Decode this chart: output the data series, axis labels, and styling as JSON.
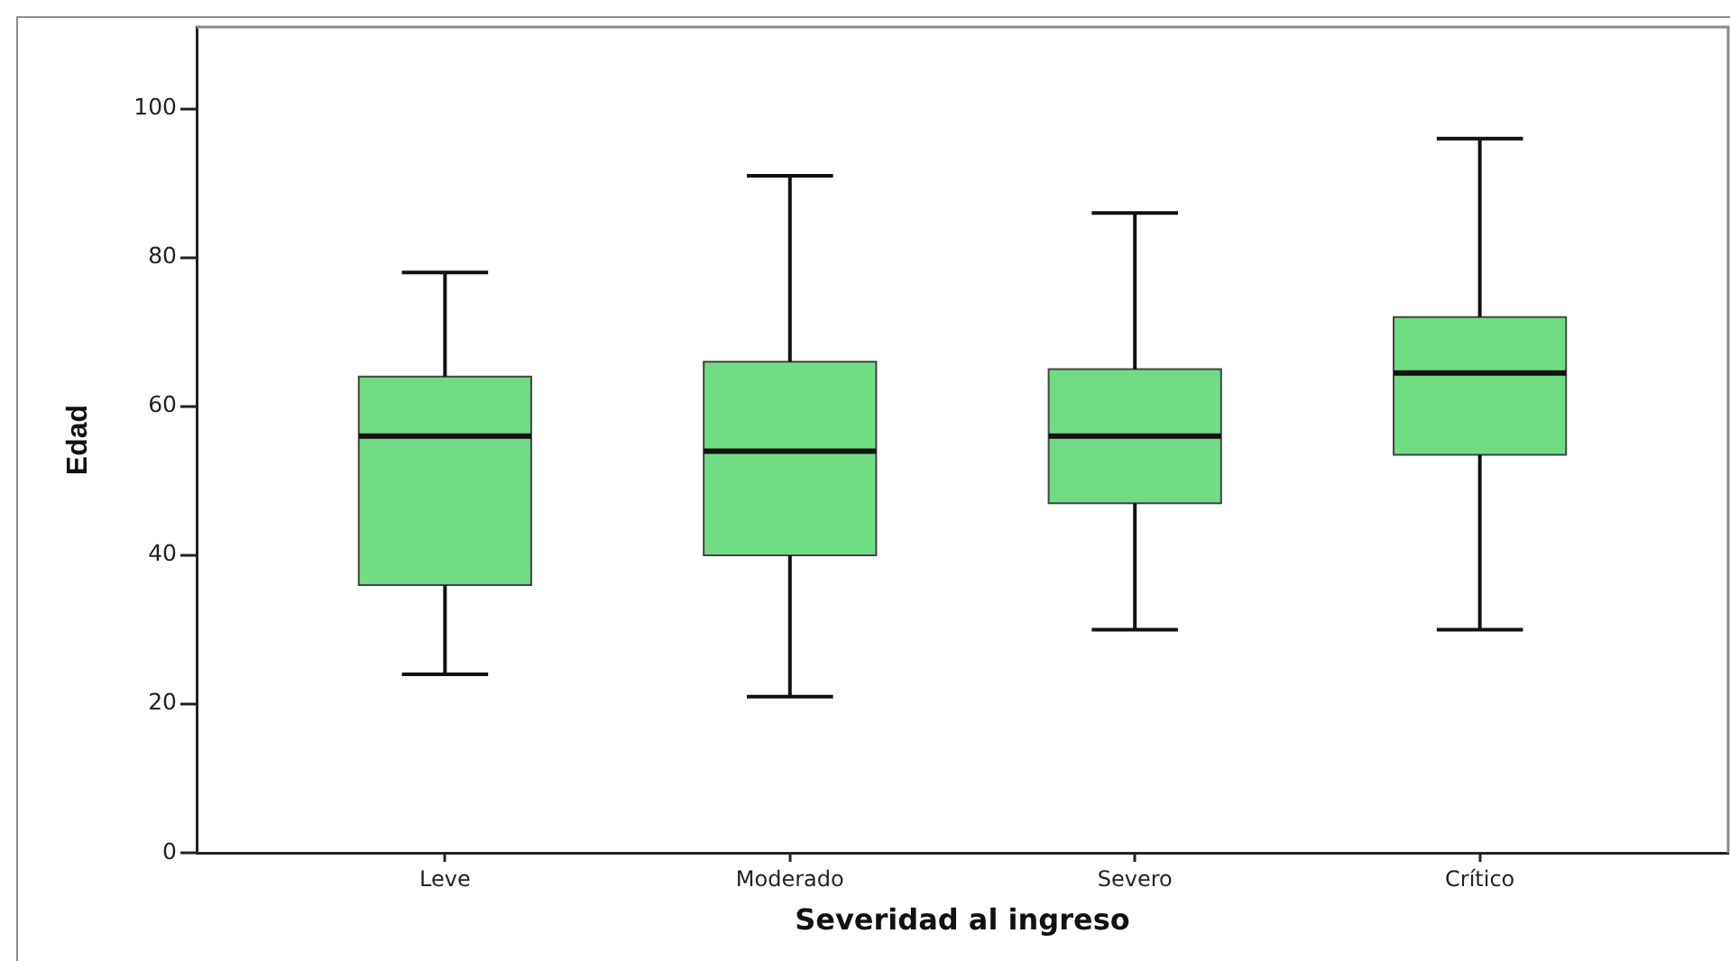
{
  "chart_data": {
    "type": "box",
    "xlabel": "Severidad al ingreso",
    "ylabel": "Edad",
    "categories": [
      "Leve",
      "Moderado",
      "Severo",
      "Crítico"
    ],
    "series": [
      {
        "color": "#70dd85",
        "boxes": [
          {
            "low": 24,
            "q1": 36,
            "median": 56,
            "q3": 64,
            "high": 78
          },
          {
            "low": 21,
            "q1": 40,
            "median": 54,
            "q3": 66,
            "high": 91
          },
          {
            "low": 30,
            "q1": 47,
            "median": 56,
            "q3": 65,
            "high": 86
          },
          {
            "low": 30,
            "q1": 53.5,
            "median": 64.5,
            "q3": 72,
            "high": 96
          }
        ]
      }
    ],
    "ylim": [
      0,
      111
    ],
    "yticks": [
      0,
      20,
      40,
      60,
      80,
      100
    ]
  }
}
